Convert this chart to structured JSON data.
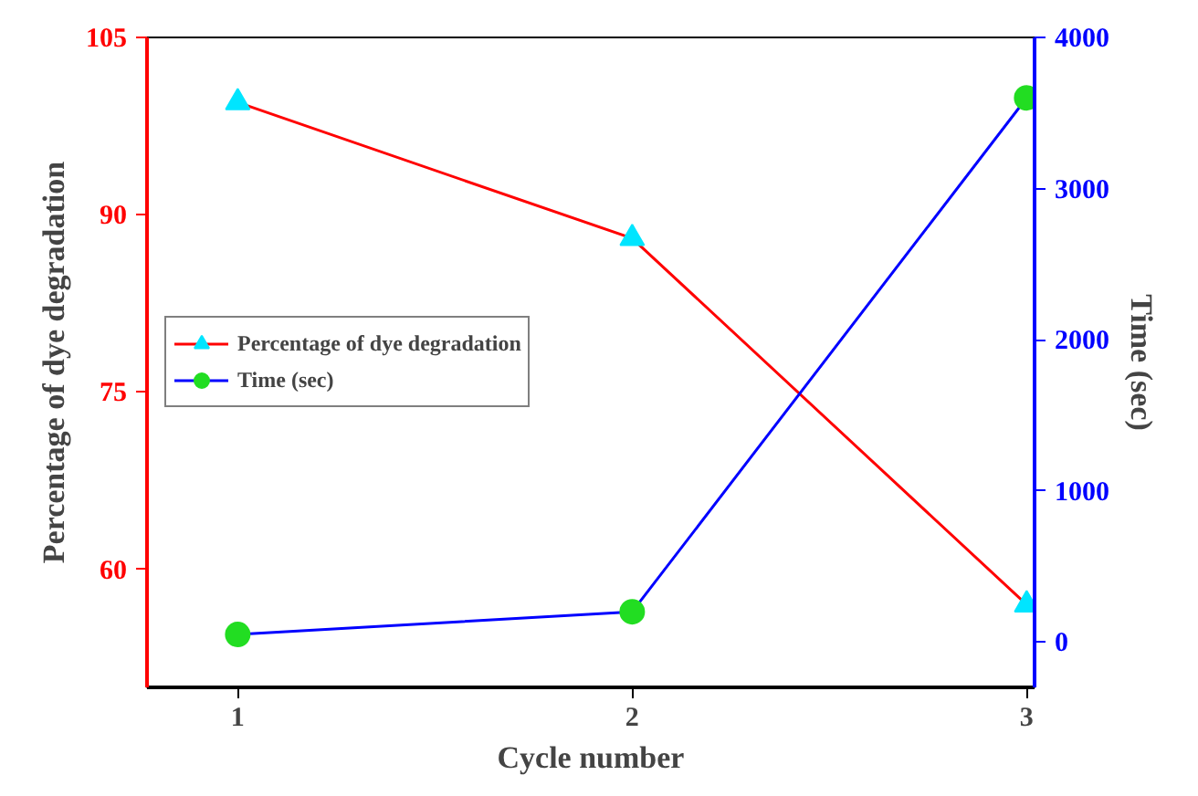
{
  "chart_data": {
    "type": "line",
    "xlabel": "Cycle number",
    "ylabel": "Percentage of dye degradation",
    "y2label": "Time (sec)",
    "x": [
      1,
      2,
      3
    ],
    "xlim": [
      0.77,
      3.02
    ],
    "xticks": [
      1,
      2,
      3
    ],
    "ylim": [
      50,
      105
    ],
    "yticks": [
      60,
      75,
      90,
      105
    ],
    "y2lim": [
      -300,
      4000
    ],
    "y2ticks": [
      0,
      1000,
      2000,
      3000,
      4000
    ],
    "series": [
      {
        "name": "Percentage of dye degradation",
        "color": "#ff0000",
        "colors": [
          "#00e5ff",
          "#00e5ff",
          "#00e5ff"
        ],
        "marker": "triangle",
        "values": [
          99.5,
          88,
          57
        ]
      },
      {
        "name": "Time (sec)",
        "color": "#0000ff",
        "colors": [
          "#22dd22",
          "#22dd22",
          "#22dd22"
        ],
        "marker": "circle",
        "axis": "y2",
        "values": [
          50,
          200,
          3600
        ]
      }
    ],
    "legend": "left",
    "grid": false
  }
}
